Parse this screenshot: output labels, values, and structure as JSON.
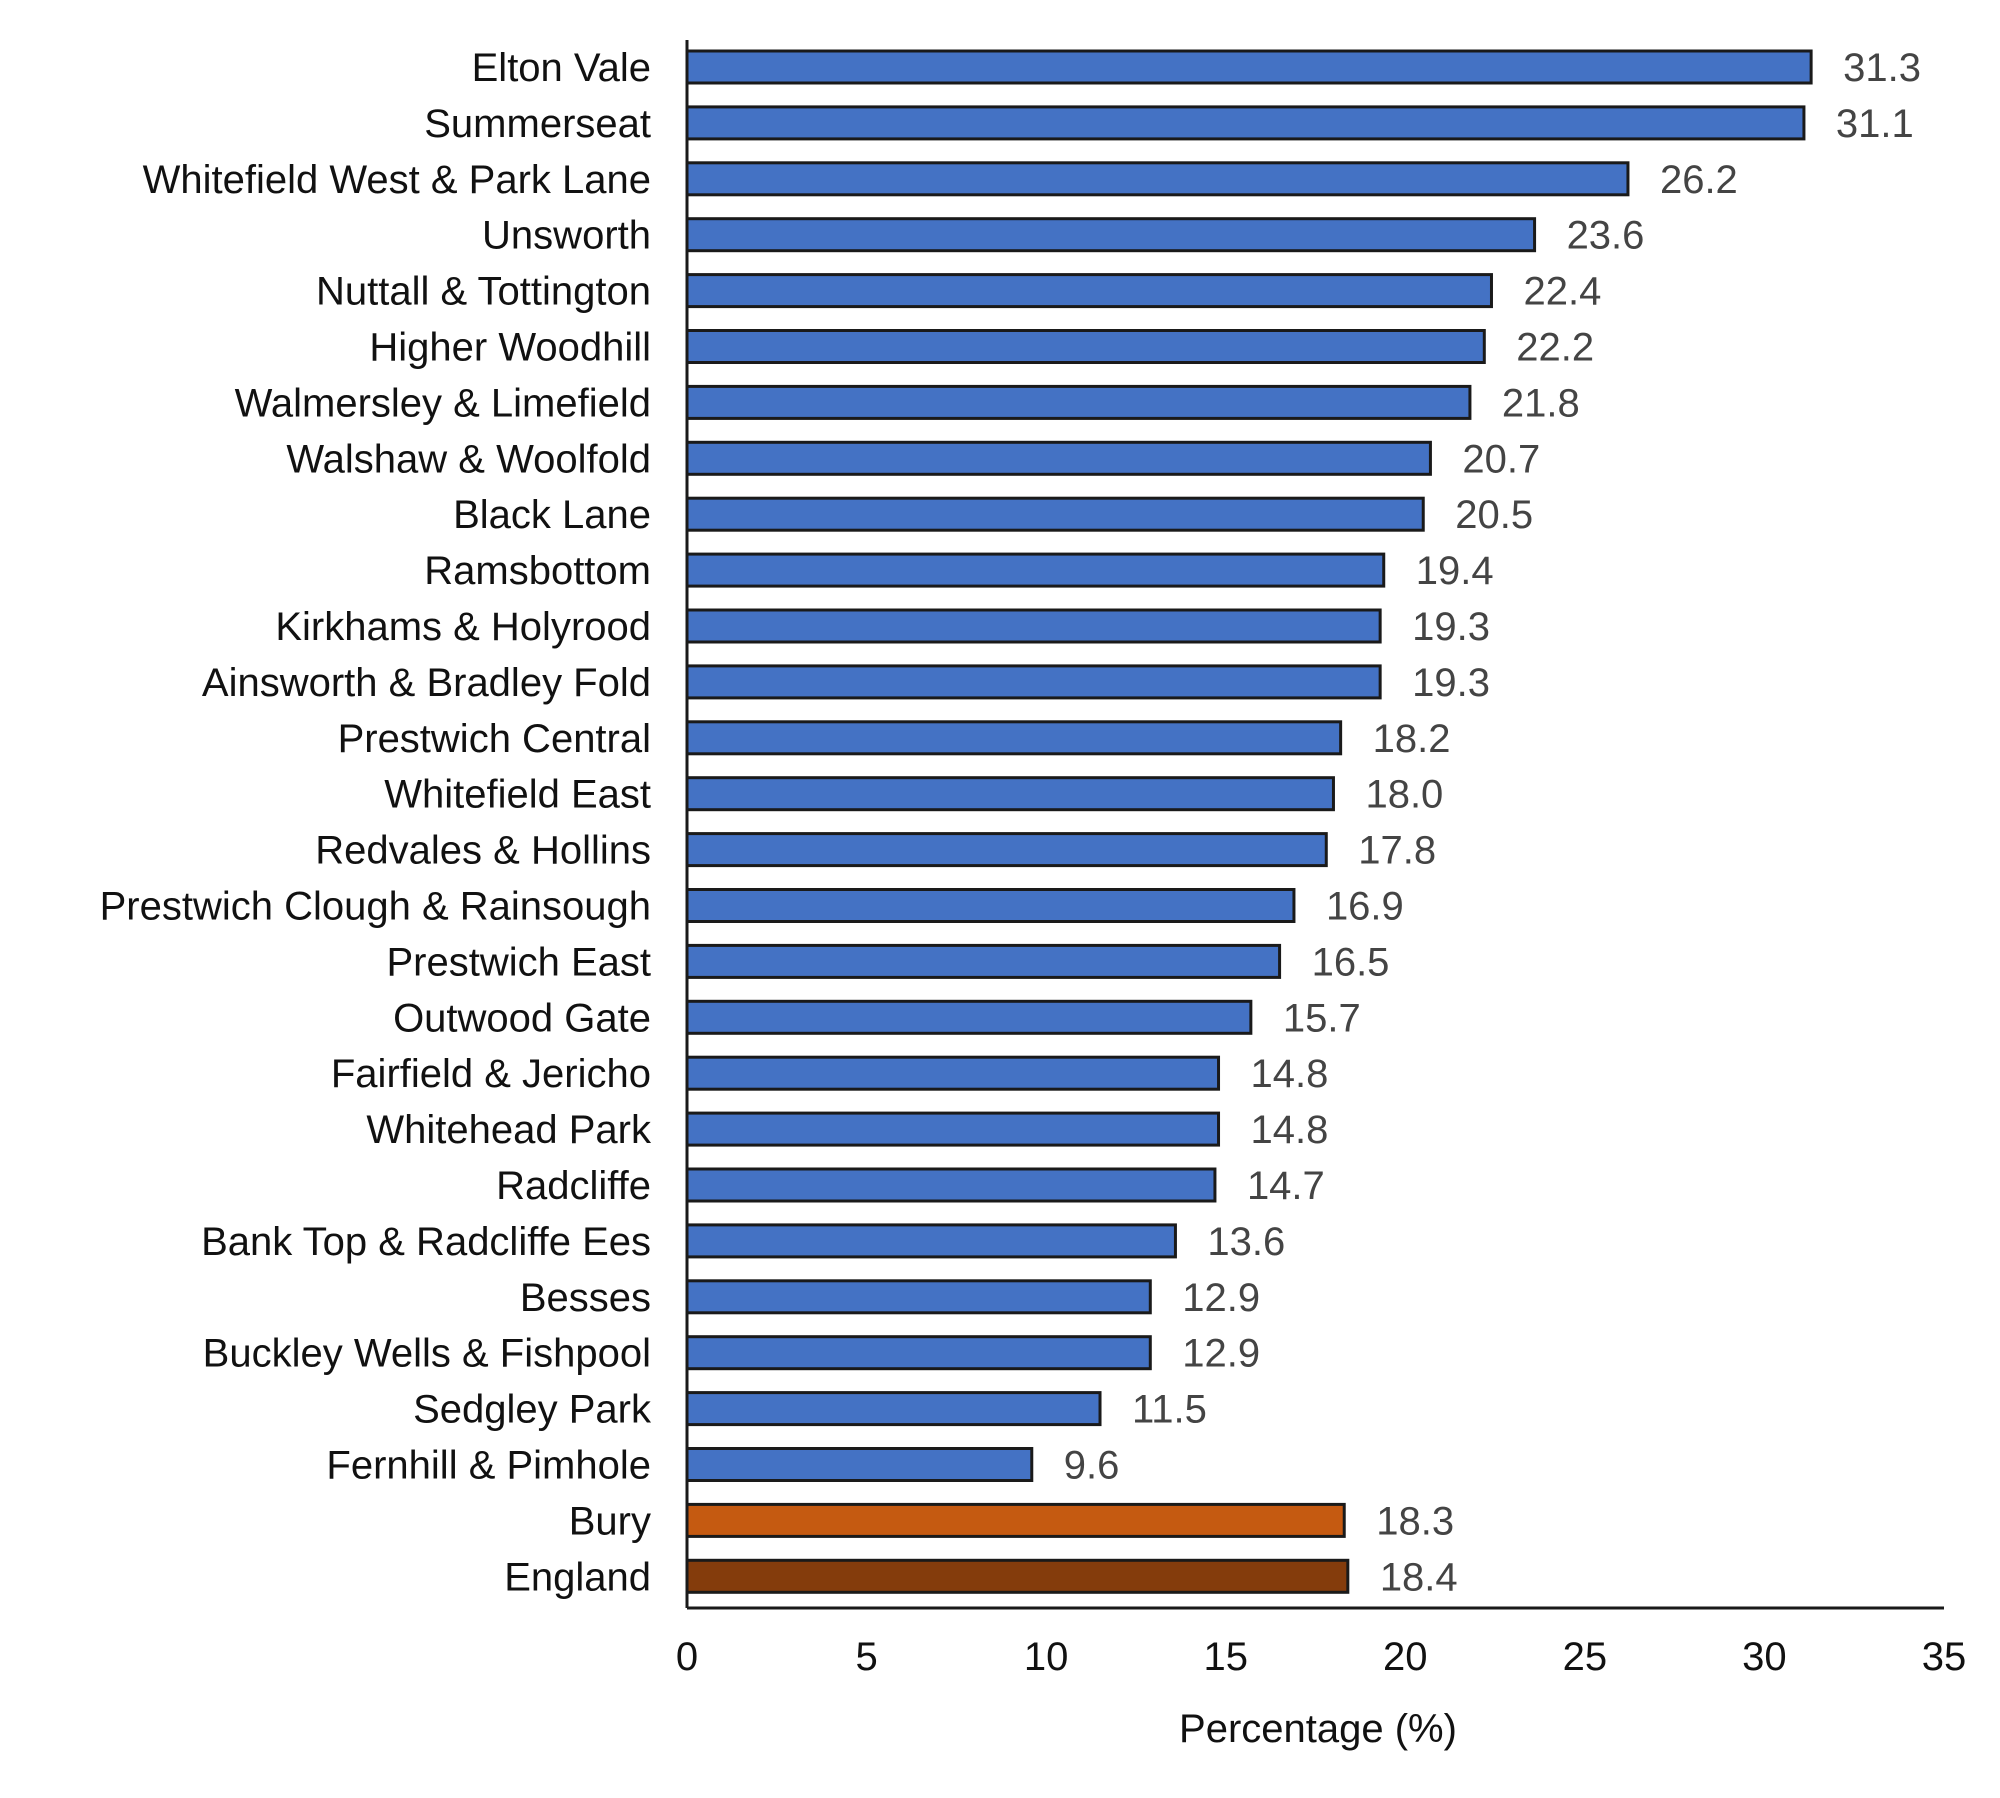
{
  "chart_data": {
    "type": "bar",
    "orientation": "horizontal",
    "title": "",
    "xlabel": "Percentage (%)",
    "ylabel": "",
    "xlim": [
      0,
      35
    ],
    "xticks": [
      0,
      5,
      10,
      15,
      20,
      25,
      30,
      35
    ],
    "grid": false,
    "legend": "none",
    "categories": [
      "Elton Vale",
      "Summerseat",
      "Whitefield West & Park Lane",
      "Unsworth",
      "Nuttall & Tottington",
      "Higher Woodhill",
      "Walmersley & Limefield",
      "Walshaw & Woolfold",
      "Black Lane",
      "Ramsbottom",
      "Kirkhams & Holyrood",
      "Ainsworth & Bradley Fold",
      "Prestwich Central",
      "Whitefield East",
      "Redvales & Hollins",
      "Prestwich Clough & Rainsough",
      "Prestwich East",
      "Outwood Gate",
      "Fairfield & Jericho",
      "Whitehead Park",
      "Radcliffe",
      "Bank Top & Radcliffe Ees",
      "Besses",
      "Buckley Wells & Fishpool",
      "Sedgley Park",
      "Fernhill & Pimhole",
      "Bury",
      "England"
    ],
    "values": [
      31.3,
      31.1,
      26.2,
      23.6,
      22.4,
      22.2,
      21.8,
      20.7,
      20.5,
      19.4,
      19.3,
      19.3,
      18.2,
      18.0,
      17.8,
      16.9,
      16.5,
      15.7,
      14.8,
      14.8,
      14.7,
      13.6,
      12.9,
      12.9,
      11.5,
      9.6,
      18.3,
      18.4
    ],
    "value_labels": [
      "31.3",
      "31.1",
      "26.2",
      "23.6",
      "22.4",
      "22.2",
      "21.8",
      "20.7",
      "20.5",
      "19.4",
      "19.3",
      "19.3",
      "18.2",
      "18.0",
      "17.8",
      "16.9",
      "16.5",
      "15.7",
      "14.8",
      "14.8",
      "14.7",
      "13.6",
      "12.9",
      "12.9",
      "11.5",
      "9.6",
      "18.3",
      "18.4"
    ],
    "colors": {
      "ward": "#4472c4",
      "Bury": "#c55a11",
      "England": "#843c0c",
      "bar_outline": "#1a1a1a",
      "axis": "#1a1a1a"
    }
  }
}
